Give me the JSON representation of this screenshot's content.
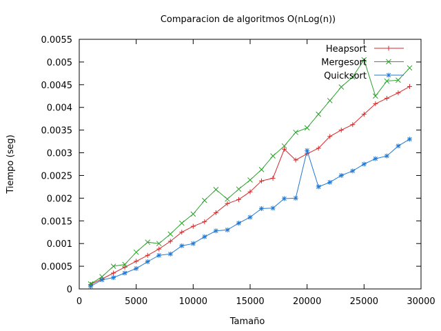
{
  "chart_data": {
    "type": "line",
    "title": "Comparacion de algoritmos O(nLog(n))",
    "xlabel": "Tamaño",
    "ylabel": "Tiempo (seg)",
    "xlim": [
      0,
      30000
    ],
    "ylim": [
      0,
      0.0055
    ],
    "xticks": [
      0,
      5000,
      10000,
      15000,
      20000,
      25000,
      30000
    ],
    "xtick_labels": [
      "0",
      "5000",
      "10000",
      "15000",
      "20000",
      "25000",
      "30000"
    ],
    "yticks": [
      0,
      0.0005,
      0.001,
      0.0015,
      0.002,
      0.0025,
      0.003,
      0.0035,
      0.004,
      0.0045,
      0.005,
      0.0055
    ],
    "ytick_labels": [
      "0",
      "0.0005",
      "0.001",
      "0.0015",
      "0.002",
      "0.0025",
      "0.003",
      "0.0035",
      "0.004",
      "0.0045",
      "0.005",
      "0.0055"
    ],
    "grid": false,
    "legend_position": "top-right",
    "x": [
      1000,
      2000,
      3000,
      4000,
      5000,
      6000,
      7000,
      8000,
      9000,
      10000,
      11000,
      12000,
      13000,
      14000,
      15000,
      16000,
      17000,
      18000,
      19000,
      20000,
      21000,
      22000,
      23000,
      24000,
      25000,
      26000,
      27000,
      28000,
      29000
    ],
    "series": [
      {
        "name": "Heapsort",
        "color": "#d62728",
        "marker": "plus",
        "values": [
          0.0001,
          0.00022,
          0.00035,
          0.00048,
          0.00061,
          0.00074,
          0.00088,
          0.00105,
          0.00125,
          0.00138,
          0.00148,
          0.00168,
          0.00188,
          0.00197,
          0.00214,
          0.00238,
          0.00244,
          0.00308,
          0.00284,
          0.00298,
          0.0031,
          0.00336,
          0.0035,
          0.00362,
          0.00385,
          0.00408,
          0.0042,
          0.00432,
          0.00446
        ]
      },
      {
        "name": "Mergesort",
        "color": "#2ca02c",
        "marker": "x",
        "values": [
          0.00011,
          0.00027,
          0.0005,
          0.00054,
          0.00081,
          0.00103,
          0.001,
          0.00121,
          0.00145,
          0.00165,
          0.00195,
          0.00219,
          0.00198,
          0.0022,
          0.0024,
          0.00263,
          0.00293,
          0.00315,
          0.00345,
          0.00355,
          0.00385,
          0.00415,
          0.00445,
          0.00467,
          0.00505,
          0.00425,
          0.00458,
          0.0046,
          0.00487
        ]
      },
      {
        "name": "Quicksort",
        "color": "#1f77d4",
        "marker": "star",
        "values": [
          6e-05,
          0.0002,
          0.00025,
          0.00035,
          0.00045,
          0.0006,
          0.00074,
          0.00077,
          0.00095,
          0.001,
          0.00115,
          0.00128,
          0.0013,
          0.00145,
          0.00158,
          0.00177,
          0.00178,
          0.00199,
          0.002,
          0.00305,
          0.00225,
          0.00235,
          0.0025,
          0.0026,
          0.00275,
          0.00287,
          0.00293,
          0.00315,
          0.0033
        ]
      }
    ]
  }
}
